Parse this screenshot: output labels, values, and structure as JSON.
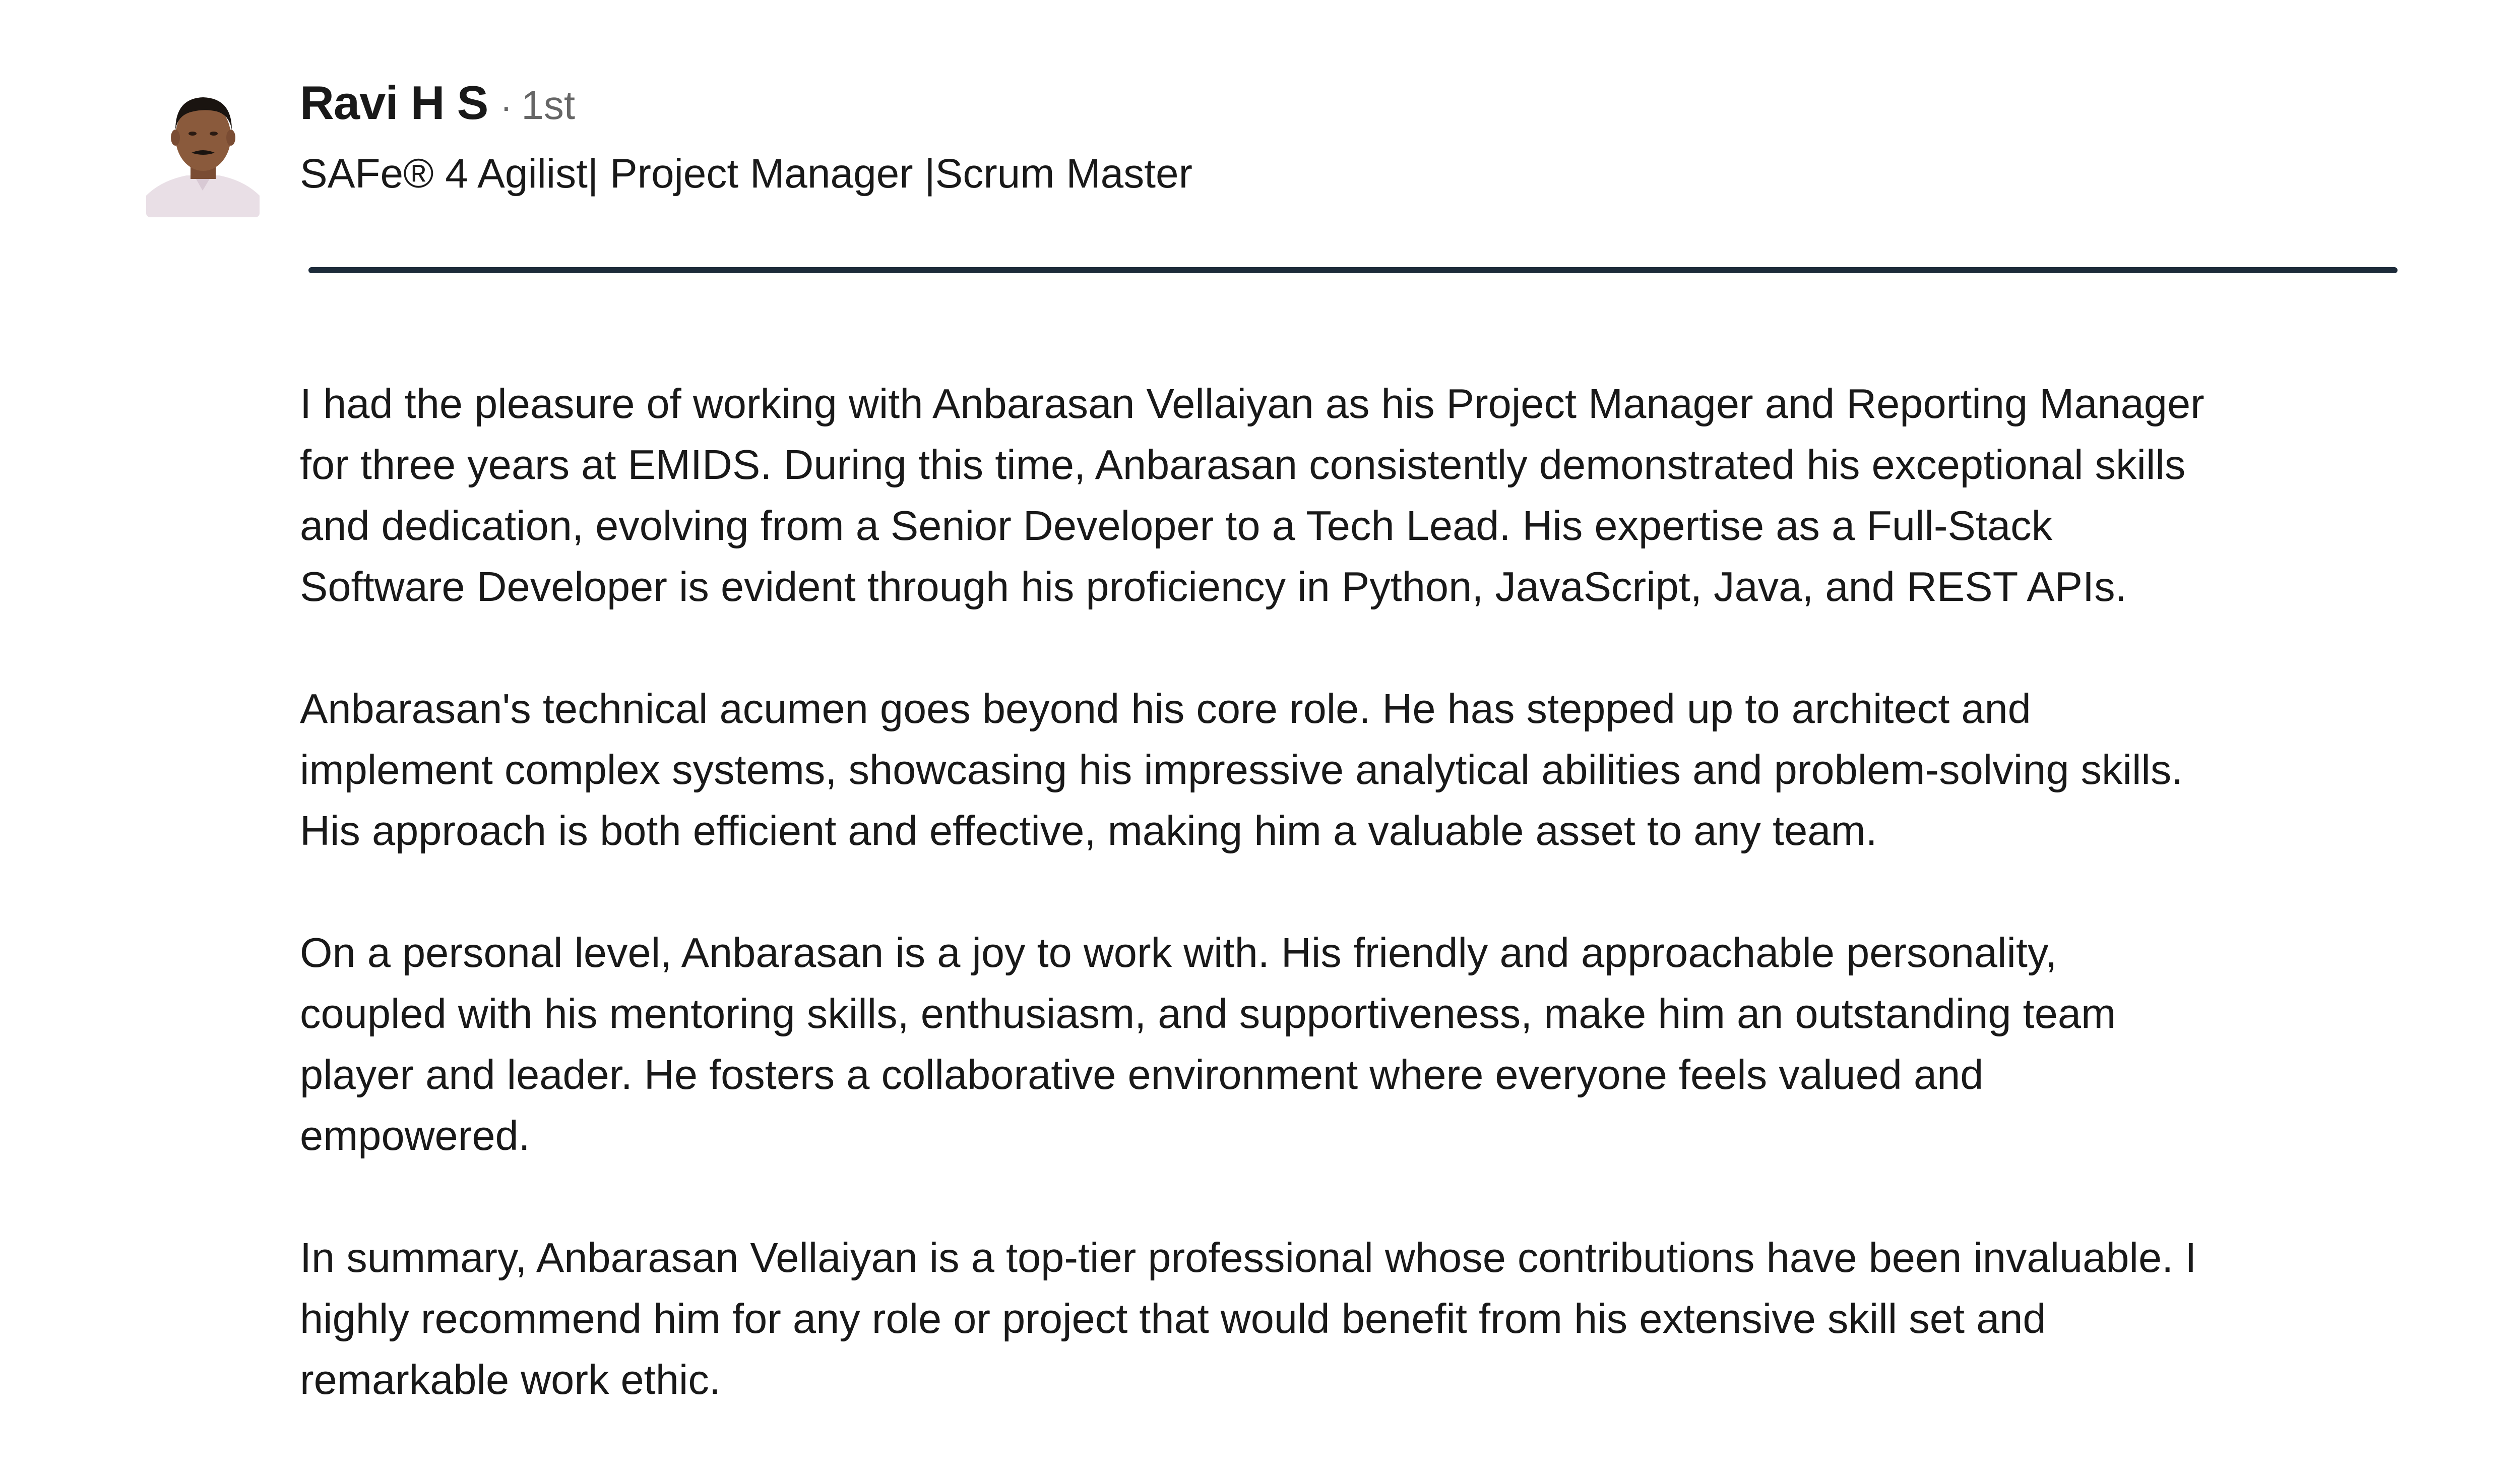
{
  "recommendation": {
    "author": {
      "name": "Ravi H S",
      "separator": "·",
      "degree": "1st",
      "headline": "SAFe® 4 Agilist| Project Manager |Scrum Master",
      "avatar_icon": "person-photo-icon"
    },
    "accent_color": "#1d2b3a",
    "paragraphs": [
      "I had the pleasure of working with Anbarasan Vellaiyan as his Project Manager and Reporting Manager\nfor three years at EMIDS. During this time, Anbarasan consistently demonstrated his exceptional skills\nand dedication, evolving from a Senior Developer to a Tech Lead. His expertise as a Full-Stack\nSoftware Developer is evident through his proficiency in Python, JavaScript, Java, and REST APIs.",
      "Anbarasan's technical acumen goes beyond his core role. He has stepped up to architect and\nimplement complex systems, showcasing his impressive analytical abilities and problem-solving skills.\nHis approach is both efficient and effective, making him a valuable asset to any team.",
      "On a personal level, Anbarasan is a joy to work with. His friendly and approachable personality,\ncoupled with his mentoring skills, enthusiasm, and supportiveness, make him an outstanding team\nplayer and leader. He fosters a collaborative environment where everyone feels valued and\nempowered.",
      "In summary, Anbarasan Vellaiyan is a top-tier professional whose contributions have been invaluable. I\nhighly recommend him for any role or project that would benefit from his extensive skill set and\nremarkable work ethic."
    ]
  }
}
